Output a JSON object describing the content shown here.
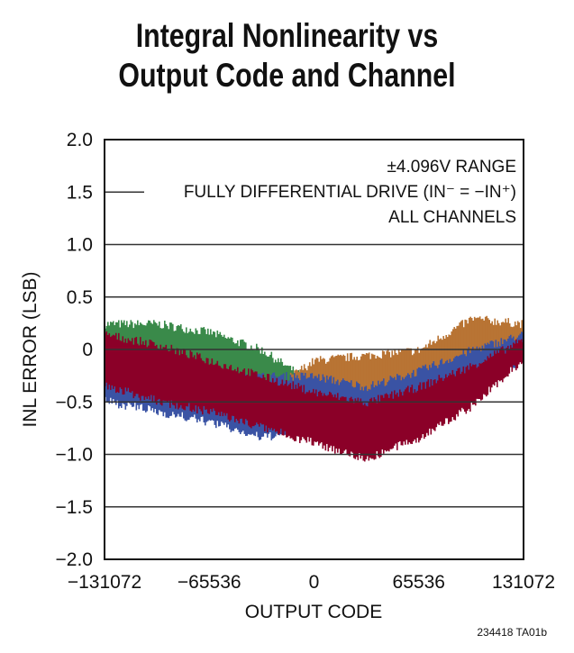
{
  "chart_data": {
    "type": "area",
    "title": [
      "Integral Nonlinearity vs",
      "Output Code and Channel"
    ],
    "xlabel": "OUTPUT CODE",
    "ylabel": "INL ERROR (LSB)",
    "xlim": [
      -131072,
      131072
    ],
    "ylim": [
      -2.0,
      2.0
    ],
    "xticks": [
      -131072,
      -65536,
      0,
      65536,
      131072
    ],
    "xtick_labels": [
      "−131072",
      "−65536",
      "0",
      "65536",
      "131072"
    ],
    "yticks": [
      2.0,
      1.5,
      1.0,
      0.5,
      0,
      -0.5,
      -1.0,
      -1.5,
      -2.0
    ],
    "ytick_labels": [
      "2.0",
      "1.5",
      "1.0",
      "0.5",
      "0",
      "−0.5",
      "−1.0",
      "−1.5",
      "−2.0"
    ],
    "grid": true,
    "annotations": [
      "±4.096V RANGE",
      "FULLY DIFFERENTIAL DRIVE (IN⁻ = −IN⁺)",
      "ALL CHANNELS"
    ],
    "footer": "234418 TA01b",
    "series": [
      {
        "color": "#3a8a4a",
        "x": [
          -131072,
          -98304,
          -65536,
          -32768,
          -8000
        ],
        "upper": [
          0.2,
          0.2,
          0.12,
          -0.05,
          -0.3
        ],
        "lower": [
          -0.1,
          -0.2,
          -0.3,
          -0.45,
          -0.5
        ]
      },
      {
        "color": "#b87333",
        "x": [
          -15000,
          0,
          32768,
          65536,
          98304,
          131072
        ],
        "upper": [
          -0.3,
          -0.15,
          -0.1,
          -0.05,
          0.25,
          0.2
        ],
        "lower": [
          -0.5,
          -0.45,
          -0.5,
          -0.4,
          -0.2,
          0.0
        ]
      },
      {
        "color": "#3a53a4",
        "x": [
          -131072,
          -98304,
          -65536,
          -32768,
          0,
          32768,
          65536,
          98304,
          131072
        ],
        "upper": [
          -0.05,
          -0.15,
          -0.3,
          -0.3,
          -0.3,
          -0.4,
          -0.25,
          -0.05,
          0.1
        ],
        "lower": [
          -0.45,
          -0.55,
          -0.65,
          -0.8,
          -0.7,
          -0.8,
          -0.6,
          -0.3,
          -0.05
        ]
      },
      {
        "color": "#8b0028",
        "x": [
          -131072,
          -98304,
          -65536,
          -32768,
          0,
          32768,
          65536,
          98304,
          131072
        ],
        "upper": [
          0.1,
          0.0,
          -0.15,
          -0.3,
          -0.45,
          -0.55,
          -0.4,
          -0.2,
          0.05
        ],
        "lower": [
          -0.3,
          -0.45,
          -0.55,
          -0.7,
          -0.85,
          -1.0,
          -0.8,
          -0.5,
          -0.05
        ]
      }
    ]
  }
}
